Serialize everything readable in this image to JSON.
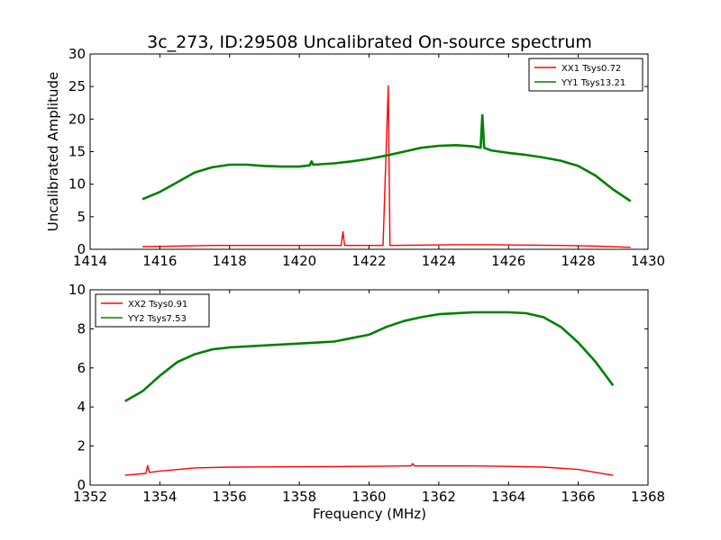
{
  "figure": {
    "title": "3c_273, ID:29508 Uncalibrated On-source spectrum"
  },
  "chart_data": [
    {
      "type": "line",
      "title": "3c_273, ID:29508 Uncalibrated On-source spectrum",
      "xlabel": "",
      "ylabel": "Uncalibrated Amplitude",
      "xlim": [
        1414,
        1430
      ],
      "ylim": [
        0,
        30
      ],
      "xticks": [
        "1414",
        "1416",
        "1418",
        "1420",
        "1422",
        "1424",
        "1426",
        "1428",
        "1430"
      ],
      "yticks": [
        "0",
        "5",
        "10",
        "15",
        "20",
        "25",
        "30"
      ],
      "legend_position": "top-right",
      "series": [
        {
          "name": "XX1 Tsys0.72",
          "color": "#ff0000",
          "points": [
            [
              1415.5,
              0.4
            ],
            [
              1416.5,
              0.5
            ],
            [
              1417.5,
              0.6
            ],
            [
              1418.5,
              0.6
            ],
            [
              1419.5,
              0.6
            ],
            [
              1420.5,
              0.6
            ],
            [
              1421.2,
              0.6
            ],
            [
              1421.25,
              2.7
            ],
            [
              1421.3,
              0.6
            ],
            [
              1422.4,
              0.6
            ],
            [
              1422.55,
              25.1
            ],
            [
              1422.6,
              0.6
            ],
            [
              1423.5,
              0.65
            ],
            [
              1424.5,
              0.7
            ],
            [
              1425.5,
              0.7
            ],
            [
              1426.5,
              0.65
            ],
            [
              1427.5,
              0.6
            ],
            [
              1428.5,
              0.5
            ],
            [
              1429.5,
              0.3
            ]
          ]
        },
        {
          "name": "YY1 Tsys13.21",
          "color": "#008000",
          "points": [
            [
              1415.5,
              7.7
            ],
            [
              1416.0,
              8.8
            ],
            [
              1416.5,
              10.3
            ],
            [
              1417.0,
              11.8
            ],
            [
              1417.5,
              12.6
            ],
            [
              1418.0,
              13.0
            ],
            [
              1418.5,
              13.0
            ],
            [
              1419.0,
              12.8
            ],
            [
              1419.5,
              12.7
            ],
            [
              1420.0,
              12.7
            ],
            [
              1420.3,
              12.9
            ],
            [
              1420.35,
              13.5
            ],
            [
              1420.4,
              13.0
            ],
            [
              1421.0,
              13.2
            ],
            [
              1421.5,
              13.5
            ],
            [
              1422.0,
              13.9
            ],
            [
              1422.5,
              14.4
            ],
            [
              1423.0,
              15.0
            ],
            [
              1423.5,
              15.6
            ],
            [
              1424.0,
              15.9
            ],
            [
              1424.5,
              16.0
            ],
            [
              1425.0,
              15.8
            ],
            [
              1425.2,
              15.6
            ],
            [
              1425.25,
              20.6
            ],
            [
              1425.3,
              15.6
            ],
            [
              1425.5,
              15.2
            ],
            [
              1426.0,
              14.8
            ],
            [
              1426.5,
              14.5
            ],
            [
              1427.0,
              14.1
            ],
            [
              1427.5,
              13.6
            ],
            [
              1428.0,
              12.8
            ],
            [
              1428.5,
              11.3
            ],
            [
              1429.0,
              9.2
            ],
            [
              1429.5,
              7.4
            ]
          ]
        }
      ]
    },
    {
      "type": "line",
      "title": "",
      "xlabel": "Frequency (MHz)",
      "ylabel": "",
      "xlim": [
        1352,
        1368
      ],
      "ylim": [
        0,
        10
      ],
      "xticks": [
        "1352",
        "1354",
        "1356",
        "1358",
        "1360",
        "1362",
        "1364",
        "1366",
        "1368"
      ],
      "yticks": [
        "0",
        "2",
        "4",
        "6",
        "8",
        "10"
      ],
      "legend_position": "top-left",
      "series": [
        {
          "name": "XX2 Tsys0.91",
          "color": "#ff0000",
          "points": [
            [
              1353.0,
              0.5
            ],
            [
              1353.6,
              0.6
            ],
            [
              1353.65,
              1.0
            ],
            [
              1353.7,
              0.65
            ],
            [
              1354.0,
              0.72
            ],
            [
              1355.0,
              0.88
            ],
            [
              1356.0,
              0.92
            ],
            [
              1357.0,
              0.93
            ],
            [
              1358.0,
              0.94
            ],
            [
              1359.0,
              0.95
            ],
            [
              1360.0,
              0.96
            ],
            [
              1361.0,
              0.98
            ],
            [
              1361.2,
              0.98
            ],
            [
              1361.25,
              1.1
            ],
            [
              1361.3,
              0.98
            ],
            [
              1362.0,
              0.98
            ],
            [
              1363.0,
              0.98
            ],
            [
              1364.0,
              0.96
            ],
            [
              1365.0,
              0.92
            ],
            [
              1366.0,
              0.8
            ],
            [
              1366.5,
              0.65
            ],
            [
              1367.0,
              0.5
            ]
          ]
        },
        {
          "name": "YY2 Tsys7.53",
          "color": "#008000",
          "points": [
            [
              1353.0,
              4.3
            ],
            [
              1353.5,
              4.8
            ],
            [
              1354.0,
              5.6
            ],
            [
              1354.5,
              6.3
            ],
            [
              1355.0,
              6.7
            ],
            [
              1355.5,
              6.95
            ],
            [
              1356.0,
              7.05
            ],
            [
              1357.0,
              7.15
            ],
            [
              1358.0,
              7.25
            ],
            [
              1359.0,
              7.35
            ],
            [
              1360.0,
              7.7
            ],
            [
              1360.5,
              8.1
            ],
            [
              1361.0,
              8.4
            ],
            [
              1361.5,
              8.6
            ],
            [
              1362.0,
              8.75
            ],
            [
              1363.0,
              8.85
            ],
            [
              1364.0,
              8.85
            ],
            [
              1364.5,
              8.8
            ],
            [
              1365.0,
              8.6
            ],
            [
              1365.5,
              8.1
            ],
            [
              1366.0,
              7.3
            ],
            [
              1366.5,
              6.3
            ],
            [
              1367.0,
              5.1
            ]
          ]
        }
      ]
    }
  ]
}
